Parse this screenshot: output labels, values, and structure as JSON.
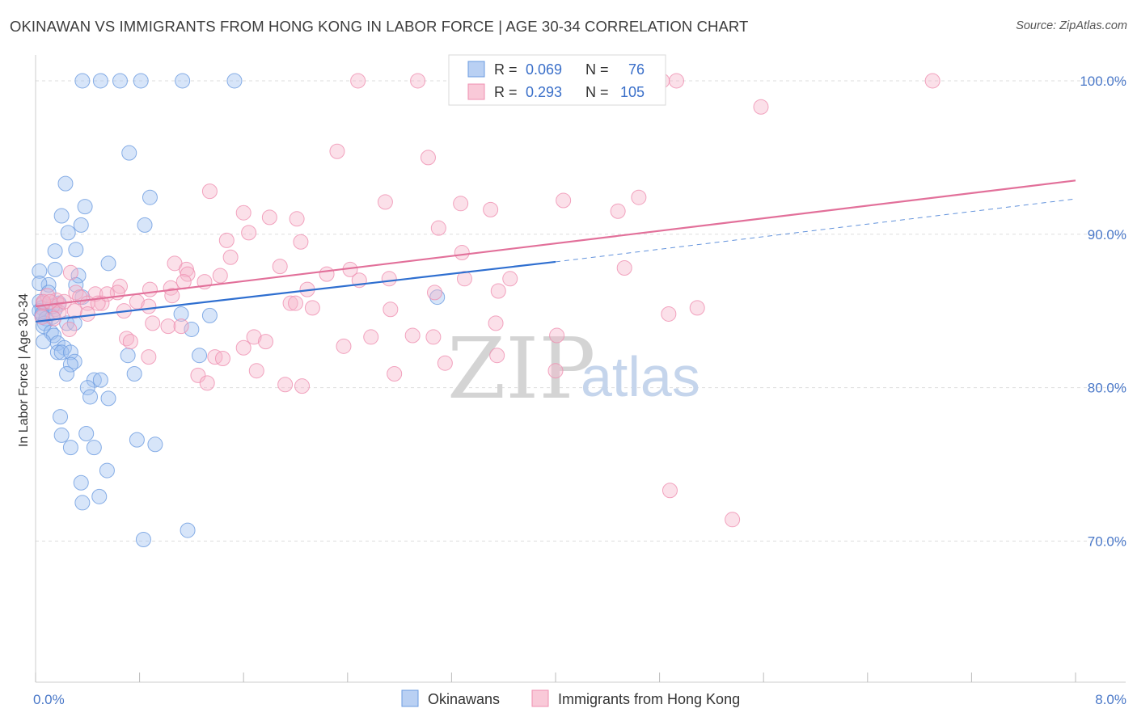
{
  "title": "OKINAWAN VS IMMIGRANTS FROM HONG KONG IN LABOR FORCE | AGE 30-34 CORRELATION CHART",
  "source": "Source: ZipAtlas.com",
  "watermark": {
    "zip": "ZIP",
    "atlas": "atlas"
  },
  "legend_top": [
    {
      "r_label": "R =",
      "r_value": "0.069",
      "n_label": "N =",
      "n_value": "76",
      "color": "#6b9be0"
    },
    {
      "r_label": "R =",
      "r_value": "0.293",
      "n_label": "N =",
      "n_value": "105",
      "color": "#ef8fb0"
    }
  ],
  "legend_bottom": [
    {
      "label": "Okinawans",
      "color": "#6b9be0"
    },
    {
      "label": "Immigrants from Hong Kong",
      "color": "#ef8fb0"
    }
  ],
  "chart_data": {
    "type": "scatter",
    "title": "OKINAWAN VS IMMIGRANTS FROM HONG KONG IN LABOR FORCE | AGE 30-34 CORRELATION CHART",
    "xlabel": "",
    "ylabel": "In Labor Force | Age 30-34",
    "xlim": [
      0,
      8
    ],
    "ylim": [
      60.8,
      102
    ],
    "x_tick_labels": [
      {
        "value": 0,
        "label": "0.0%"
      },
      {
        "value": 8,
        "label": "8.0%"
      }
    ],
    "y_ticks": [
      {
        "value": 70,
        "label": "70.0%"
      },
      {
        "value": 80,
        "label": "80.0%"
      },
      {
        "value": 90,
        "label": "90.0%"
      },
      {
        "value": 100,
        "label": "100.0%"
      }
    ],
    "grid": true,
    "series": [
      {
        "name": "Okinawans",
        "color": "#6b9be0",
        "trend": {
          "x0": 0,
          "y0": 84.3,
          "x1": 4.0,
          "y1": 88.2,
          "dash_to_x": 8.0,
          "dash_to_y": 92.3
        },
        "points": [
          [
            0.36,
            100
          ],
          [
            0.5,
            100
          ],
          [
            0.65,
            100
          ],
          [
            0.81,
            100
          ],
          [
            1.13,
            100
          ],
          [
            1.53,
            100
          ],
          [
            0.72,
            95.3
          ],
          [
            0.23,
            93.3
          ],
          [
            0.88,
            92.4
          ],
          [
            0.38,
            91.8
          ],
          [
            0.2,
            91.2
          ],
          [
            0.84,
            90.6
          ],
          [
            0.35,
            90.6
          ],
          [
            0.25,
            90.1
          ],
          [
            0.31,
            89.0
          ],
          [
            0.15,
            88.9
          ],
          [
            0.56,
            88.1
          ],
          [
            0.15,
            87.7
          ],
          [
            0.33,
            87.3
          ],
          [
            0.03,
            87.6
          ],
          [
            0.1,
            86.7
          ],
          [
            0.03,
            86.8
          ],
          [
            0.31,
            86.7
          ],
          [
            0.1,
            86.2
          ],
          [
            0.36,
            85.9
          ],
          [
            0.03,
            85.6
          ],
          [
            0.06,
            85.5
          ],
          [
            0.18,
            85.5
          ],
          [
            0.05,
            85.2
          ],
          [
            0.15,
            85.1
          ],
          [
            0.03,
            85.0
          ],
          [
            0.05,
            84.7
          ],
          [
            0.08,
            84.5
          ],
          [
            0.13,
            84.6
          ],
          [
            0.07,
            84.2
          ],
          [
            0.24,
            84.2
          ],
          [
            0.3,
            84.2
          ],
          [
            0.06,
            84.0
          ],
          [
            0.12,
            83.6
          ],
          [
            0.14,
            83.4
          ],
          [
            0.06,
            83.0
          ],
          [
            0.17,
            82.9
          ],
          [
            0.22,
            82.6
          ],
          [
            0.17,
            82.3
          ],
          [
            0.2,
            82.3
          ],
          [
            0.27,
            82.3
          ],
          [
            0.71,
            82.1
          ],
          [
            1.26,
            82.1
          ],
          [
            0.3,
            81.7
          ],
          [
            0.27,
            81.5
          ],
          [
            0.24,
            80.9
          ],
          [
            0.76,
            80.9
          ],
          [
            0.45,
            80.5
          ],
          [
            0.5,
            80.5
          ],
          [
            0.4,
            80.0
          ],
          [
            0.42,
            79.4
          ],
          [
            0.56,
            79.3
          ],
          [
            0.19,
            78.1
          ],
          [
            0.2,
            76.9
          ],
          [
            0.39,
            77.0
          ],
          [
            0.27,
            76.1
          ],
          [
            0.45,
            76.1
          ],
          [
            0.78,
            76.6
          ],
          [
            0.92,
            76.3
          ],
          [
            0.55,
            74.6
          ],
          [
            0.35,
            73.8
          ],
          [
            0.36,
            72.5
          ],
          [
            0.49,
            72.9
          ],
          [
            0.83,
            70.1
          ],
          [
            1.17,
            70.7
          ],
          [
            1.2,
            83.8
          ],
          [
            1.34,
            84.7
          ],
          [
            1.12,
            84.8
          ],
          [
            3.09,
            85.9
          ],
          [
            0.05,
            84.8
          ],
          [
            0.13,
            85.3
          ]
        ]
      },
      {
        "name": "Immigrants from Hong Kong",
        "color": "#ef8fb0",
        "trend": {
          "x0": 0,
          "y0": 85.3,
          "x1": 8.0,
          "y1": 93.5
        },
        "points": [
          [
            2.48,
            100
          ],
          [
            2.94,
            100
          ],
          [
            3.42,
            100
          ],
          [
            4.82,
            100
          ],
          [
            4.93,
            100
          ],
          [
            6.9,
            100
          ],
          [
            5.58,
            98.3
          ],
          [
            2.32,
            95.4
          ],
          [
            3.02,
            95.0
          ],
          [
            1.34,
            92.8
          ],
          [
            4.64,
            92.4
          ],
          [
            2.69,
            92.1
          ],
          [
            4.06,
            92.2
          ],
          [
            3.27,
            92.0
          ],
          [
            3.5,
            91.6
          ],
          [
            1.6,
            91.4
          ],
          [
            4.48,
            91.5
          ],
          [
            1.8,
            91.1
          ],
          [
            2.01,
            91.0
          ],
          [
            3.1,
            90.4
          ],
          [
            1.64,
            90.1
          ],
          [
            1.47,
            89.6
          ],
          [
            2.04,
            89.5
          ],
          [
            3.28,
            88.8
          ],
          [
            1.5,
            88.5
          ],
          [
            1.07,
            88.1
          ],
          [
            1.16,
            87.7
          ],
          [
            1.88,
            87.9
          ],
          [
            4.53,
            87.8
          ],
          [
            1.17,
            87.4
          ],
          [
            1.42,
            87.3
          ],
          [
            2.24,
            87.4
          ],
          [
            2.42,
            87.7
          ],
          [
            0.27,
            87.5
          ],
          [
            0.65,
            86.6
          ],
          [
            1.04,
            86.5
          ],
          [
            1.14,
            86.9
          ],
          [
            0.88,
            86.4
          ],
          [
            2.09,
            86.4
          ],
          [
            2.49,
            87.0
          ],
          [
            2.72,
            87.1
          ],
          [
            3.07,
            86.2
          ],
          [
            3.3,
            87.1
          ],
          [
            3.56,
            86.3
          ],
          [
            3.65,
            87.1
          ],
          [
            0.31,
            86.2
          ],
          [
            0.46,
            86.1
          ],
          [
            0.63,
            86.2
          ],
          [
            0.16,
            85.7
          ],
          [
            0.34,
            85.9
          ],
          [
            0.06,
            85.5
          ],
          [
            0.18,
            85.4
          ],
          [
            0.51,
            85.5
          ],
          [
            0.78,
            85.6
          ],
          [
            0.87,
            85.3
          ],
          [
            1.96,
            85.5
          ],
          [
            2.0,
            85.5
          ],
          [
            2.13,
            85.2
          ],
          [
            2.73,
            85.1
          ],
          [
            0.4,
            85.5
          ],
          [
            0.18,
            84.9
          ],
          [
            0.4,
            84.8
          ],
          [
            0.14,
            84.5
          ],
          [
            0.68,
            85.0
          ],
          [
            4.87,
            84.8
          ],
          [
            5.09,
            85.2
          ],
          [
            3.54,
            84.2
          ],
          [
            0.9,
            84.2
          ],
          [
            1.02,
            84.0
          ],
          [
            1.12,
            84.0
          ],
          [
            0.26,
            83.8
          ],
          [
            1.68,
            83.3
          ],
          [
            1.77,
            83.0
          ],
          [
            2.58,
            83.3
          ],
          [
            2.9,
            83.4
          ],
          [
            3.06,
            83.3
          ],
          [
            4.01,
            83.4
          ],
          [
            0.7,
            83.2
          ],
          [
            0.73,
            83.0
          ],
          [
            1.6,
            82.6
          ],
          [
            2.37,
            82.7
          ],
          [
            1.38,
            82.0
          ],
          [
            1.44,
            81.9
          ],
          [
            0.87,
            82.0
          ],
          [
            3.15,
            81.6
          ],
          [
            3.55,
            82.1
          ],
          [
            1.7,
            81.1
          ],
          [
            2.76,
            80.9
          ],
          [
            4.0,
            81.1
          ],
          [
            1.25,
            80.8
          ],
          [
            1.32,
            80.3
          ],
          [
            1.92,
            80.2
          ],
          [
            2.05,
            80.1
          ],
          [
            4.88,
            73.3
          ],
          [
            5.36,
            71.4
          ],
          [
            0.05,
            84.6
          ],
          [
            0.09,
            86.0
          ],
          [
            0.22,
            85.6
          ],
          [
            0.48,
            85.5
          ],
          [
            1.3,
            86.9
          ],
          [
            0.06,
            85.6
          ],
          [
            0.11,
            85.6
          ],
          [
            1.05,
            86.0
          ],
          [
            0.55,
            86.1
          ],
          [
            0.3,
            85.0
          ]
        ]
      }
    ]
  }
}
